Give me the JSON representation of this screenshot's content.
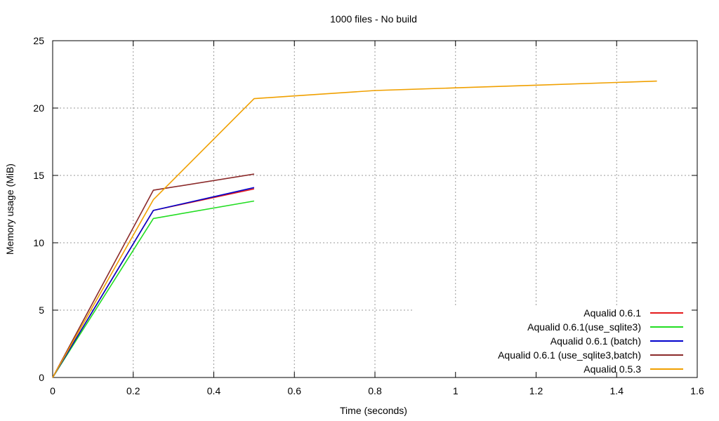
{
  "chart_data": {
    "type": "line",
    "title": "1000 files - No build",
    "xlabel": "Time (seconds)",
    "ylabel": "Memory usage (MiB)",
    "xlim": [
      0,
      1.6
    ],
    "ylim": [
      0,
      25
    ],
    "xticks": [
      "0",
      "0.2",
      "0.4",
      "0.6",
      "0.8",
      "1",
      "1.2",
      "1.4",
      "1.6"
    ],
    "yticks": [
      "0",
      "5",
      "10",
      "15",
      "20",
      "25"
    ],
    "grid": true,
    "legend_position": "bottom-right",
    "series": [
      {
        "name": "Aqualid 0.6.1",
        "color": "#e41a1c",
        "x": [
          0,
          0.25,
          0.5
        ],
        "y": [
          0,
          12.4,
          14.0
        ]
      },
      {
        "name": "Aqualid 0.6.1(use_sqlite3)",
        "color": "#22dd22",
        "x": [
          0,
          0.25,
          0.5
        ],
        "y": [
          0,
          11.8,
          13.1
        ]
      },
      {
        "name": "Aqualid 0.6.1 (batch)",
        "color": "#0000cc",
        "x": [
          0,
          0.25,
          0.5
        ],
        "y": [
          0,
          12.4,
          14.1
        ]
      },
      {
        "name": "Aqualid 0.6.1 (use_sqlite3,batch)",
        "color": "#8b2a2a",
        "x": [
          0,
          0.25,
          0.5
        ],
        "y": [
          0,
          13.9,
          15.1
        ]
      },
      {
        "name": "Aqualid 0.5.3",
        "color": "#f0a000",
        "x": [
          0,
          0.25,
          0.5,
          0.6,
          0.8,
          1.0,
          1.2,
          1.4,
          1.5
        ],
        "y": [
          0,
          13.2,
          20.7,
          20.9,
          21.3,
          21.5,
          21.7,
          21.9,
          22.0
        ]
      }
    ]
  }
}
